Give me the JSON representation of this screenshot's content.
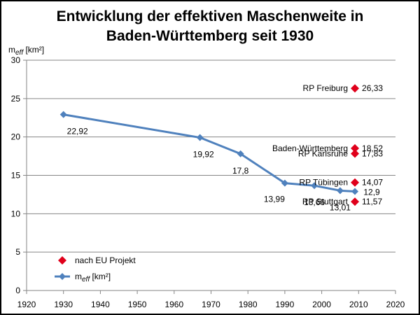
{
  "chart_data": {
    "type": "line",
    "title_line1": "Entwicklung der effektiven Maschenweite in",
    "title_line2": "Baden-Württemberg seit 1930",
    "ylabel_main": "m",
    "ylabel_sub": "eff",
    "ylabel_unit": " [km²]",
    "xlabel": "",
    "xlim": [
      1920,
      2020
    ],
    "ylim": [
      0,
      30
    ],
    "xticks": [
      1920,
      1930,
      1940,
      1950,
      1960,
      1970,
      1980,
      1990,
      2000,
      2010,
      2020
    ],
    "yticks": [
      0,
      5,
      10,
      15,
      20,
      25,
      30
    ],
    "grid": "horizontal",
    "legend_position": "bottom-left",
    "series": [
      {
        "name": "m_eff [km²]",
        "legend_main": "m",
        "legend_sub": "eff",
        "legend_unit": " [km²]",
        "type": "line",
        "color": "#4F81BD",
        "marker": "diamond",
        "x": [
          1930,
          1967,
          1978,
          1990,
          1998,
          2005,
          2009
        ],
        "y": [
          22.92,
          19.92,
          17.8,
          13.99,
          13.66,
          13.01,
          12.9
        ],
        "labels": [
          "22,92",
          "19,92",
          "17,8",
          "13,99",
          "13,66",
          "13,01",
          "12,9"
        ]
      },
      {
        "name": "nach EU Projekt",
        "type": "scatter",
        "color": "#E0001B",
        "marker": "diamond",
        "points": [
          {
            "x": 2009,
            "y": 26.33,
            "name": "RP Freiburg",
            "label": "26,33"
          },
          {
            "x": 2009,
            "y": 18.52,
            "name": "Baden-Württemberg",
            "label": "18,52"
          },
          {
            "x": 2009,
            "y": 17.83,
            "name": "RP Karlsruhe",
            "label": "17,83"
          },
          {
            "x": 2009,
            "y": 14.07,
            "name": "RP Tübingen",
            "label": "14,07"
          },
          {
            "x": 2009,
            "y": 11.57,
            "name": "RP Stuttgart",
            "label": "11,57"
          }
        ]
      }
    ]
  }
}
